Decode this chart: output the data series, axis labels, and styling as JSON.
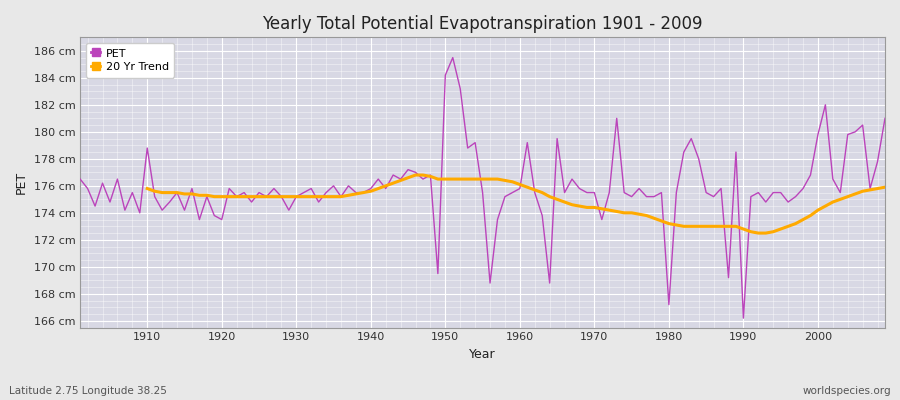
{
  "title": "Yearly Total Potential Evapotranspiration 1901 - 2009",
  "xlabel": "Year",
  "ylabel": "PET",
  "subtitle": "Latitude 2.75 Longitude 38.25",
  "watermark": "worldspecies.org",
  "pet_color": "#bb44bb",
  "trend_color": "#ffaa00",
  "fig_bg_color": "#e8e8e8",
  "plot_bg_color": "#d8d8e4",
  "ylim": [
    165.5,
    187.0
  ],
  "ytick_labels": [
    "166 cm",
    "168 cm",
    "170 cm",
    "172 cm",
    "174 cm",
    "176 cm",
    "178 cm",
    "180 cm",
    "182 cm",
    "184 cm",
    "186 cm"
  ],
  "ytick_values": [
    166,
    168,
    170,
    172,
    174,
    176,
    178,
    180,
    182,
    184,
    186
  ],
  "xticks": [
    1910,
    1920,
    1930,
    1940,
    1950,
    1960,
    1970,
    1980,
    1990,
    2000
  ],
  "years": [
    1901,
    1902,
    1903,
    1904,
    1905,
    1906,
    1907,
    1908,
    1909,
    1910,
    1911,
    1912,
    1913,
    1914,
    1915,
    1916,
    1917,
    1918,
    1919,
    1920,
    1921,
    1922,
    1923,
    1924,
    1925,
    1926,
    1927,
    1928,
    1929,
    1930,
    1931,
    1932,
    1933,
    1934,
    1935,
    1936,
    1937,
    1938,
    1939,
    1940,
    1941,
    1942,
    1943,
    1944,
    1945,
    1946,
    1947,
    1948,
    1949,
    1950,
    1951,
    1952,
    1953,
    1954,
    1955,
    1956,
    1957,
    1958,
    1959,
    1960,
    1961,
    1962,
    1963,
    1964,
    1965,
    1966,
    1967,
    1968,
    1969,
    1970,
    1971,
    1972,
    1973,
    1974,
    1975,
    1976,
    1977,
    1978,
    1979,
    1980,
    1981,
    1982,
    1983,
    1984,
    1985,
    1986,
    1987,
    1988,
    1989,
    1990,
    1991,
    1992,
    1993,
    1994,
    1995,
    1996,
    1997,
    1998,
    1999,
    2000,
    2001,
    2002,
    2003,
    2004,
    2005,
    2006,
    2007,
    2008,
    2009
  ],
  "pet_values": [
    176.5,
    175.8,
    174.5,
    176.2,
    174.8,
    176.5,
    174.2,
    175.5,
    174.0,
    178.8,
    175.2,
    174.2,
    174.8,
    175.5,
    174.2,
    175.8,
    173.5,
    175.2,
    173.8,
    173.5,
    175.8,
    175.2,
    175.5,
    174.8,
    175.5,
    175.2,
    175.8,
    175.2,
    174.2,
    175.2,
    175.5,
    175.8,
    174.8,
    175.5,
    176.0,
    175.2,
    176.0,
    175.5,
    175.5,
    175.8,
    176.5,
    175.8,
    176.8,
    176.5,
    177.2,
    177.0,
    176.5,
    176.8,
    169.5,
    184.2,
    185.5,
    183.2,
    178.8,
    179.2,
    175.5,
    168.8,
    173.5,
    175.2,
    175.5,
    175.8,
    179.2,
    175.5,
    173.8,
    168.8,
    179.5,
    175.5,
    176.5,
    175.8,
    175.5,
    175.5,
    173.5,
    175.5,
    181.0,
    175.5,
    175.2,
    175.8,
    175.2,
    175.2,
    175.5,
    167.2,
    175.5,
    178.5,
    179.5,
    178.0,
    175.5,
    175.2,
    175.8,
    169.2,
    178.5,
    166.2,
    175.2,
    175.5,
    174.8,
    175.5,
    175.5,
    174.8,
    175.2,
    175.8,
    176.8,
    179.8,
    182.0,
    176.5,
    175.5,
    179.8,
    180.0,
    180.5,
    175.8,
    177.8,
    181.0
  ],
  "trend_years": [
    1910,
    1911,
    1912,
    1913,
    1914,
    1915,
    1916,
    1917,
    1918,
    1919,
    1920,
    1921,
    1922,
    1923,
    1924,
    1925,
    1926,
    1927,
    1928,
    1929,
    1930,
    1931,
    1932,
    1933,
    1934,
    1935,
    1936,
    1937,
    1938,
    1939,
    1940,
    1941,
    1942,
    1943,
    1944,
    1945,
    1946,
    1947,
    1948,
    1949,
    1950,
    1951,
    1952,
    1953,
    1954,
    1955,
    1956,
    1957,
    1958,
    1959,
    1960,
    1961,
    1962,
    1963,
    1964,
    1965,
    1966,
    1967,
    1968,
    1969,
    1970,
    1971,
    1972,
    1973,
    1974,
    1975,
    1976,
    1977,
    1978,
    1979,
    1980,
    1981,
    1982,
    1983,
    1984,
    1985,
    1986,
    1987,
    1988,
    1989,
    1990,
    1991,
    1992,
    1993,
    1994,
    1995,
    1996,
    1997,
    1998,
    1999,
    2000,
    2001,
    2002,
    2003,
    2004,
    2005,
    2006,
    2007,
    2008,
    2009
  ],
  "trend_values": [
    175.8,
    175.6,
    175.5,
    175.5,
    175.5,
    175.4,
    175.4,
    175.3,
    175.3,
    175.2,
    175.2,
    175.2,
    175.2,
    175.2,
    175.2,
    175.2,
    175.2,
    175.2,
    175.2,
    175.2,
    175.2,
    175.2,
    175.2,
    175.2,
    175.2,
    175.2,
    175.2,
    175.3,
    175.4,
    175.5,
    175.6,
    175.8,
    176.0,
    176.2,
    176.4,
    176.6,
    176.8,
    176.8,
    176.7,
    176.5,
    176.5,
    176.5,
    176.5,
    176.5,
    176.5,
    176.5,
    176.5,
    176.5,
    176.4,
    176.3,
    176.1,
    175.9,
    175.7,
    175.5,
    175.2,
    175.0,
    174.8,
    174.6,
    174.5,
    174.4,
    174.4,
    174.3,
    174.2,
    174.1,
    174.0,
    174.0,
    173.9,
    173.8,
    173.6,
    173.4,
    173.2,
    173.1,
    173.0,
    173.0,
    173.0,
    173.0,
    173.0,
    173.0,
    173.0,
    173.0,
    172.8,
    172.6,
    172.5,
    172.5,
    172.6,
    172.8,
    173.0,
    173.2,
    173.5,
    173.8,
    174.2,
    174.5,
    174.8,
    175.0,
    175.2,
    175.4,
    175.6,
    175.7,
    175.8,
    175.9
  ]
}
